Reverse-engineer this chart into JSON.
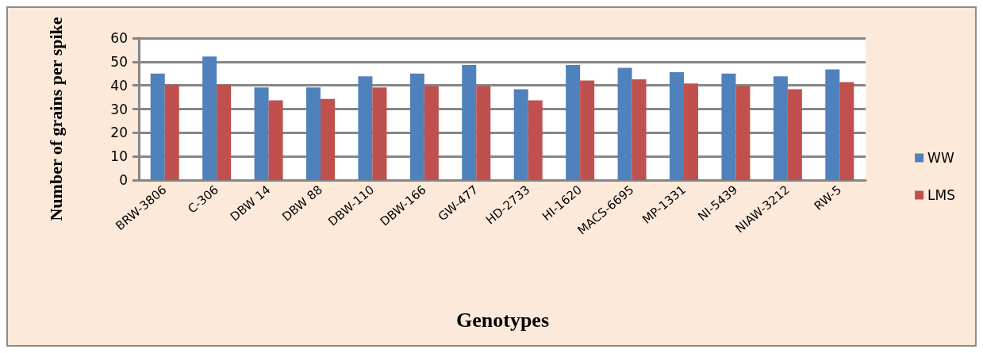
{
  "chart_data": {
    "type": "bar",
    "xlabel": "Genotypes",
    "ylabel": "Number of grains per spike",
    "categories": [
      "BRW-3806",
      "C-306",
      "DBW 14",
      "DBW 88",
      "DBW-110",
      "DBW-166",
      "GW-477",
      "HD-2733",
      "HI-1620",
      "MACS-6695",
      "MP-1331",
      "NI-5439",
      "NIAW-3212",
      "RW-5"
    ],
    "series": [
      {
        "name": "WW",
        "color": "#4f81bd",
        "values": [
          45.0,
          52.2,
          39.1,
          39.1,
          43.8,
          45.0,
          48.6,
          38.4,
          48.6,
          47.4,
          45.6,
          45.0,
          43.8,
          46.8
        ]
      },
      {
        "name": "LMS",
        "color": "#c0504d",
        "values": [
          40.3,
          40.3,
          33.7,
          34.3,
          39.1,
          39.7,
          39.7,
          33.7,
          42.1,
          42.6,
          40.8,
          39.7,
          38.4,
          41.4
        ]
      }
    ],
    "ylim": [
      0,
      60
    ],
    "yticks": [
      0,
      10,
      20,
      30,
      40,
      50,
      60
    ],
    "grid": "y",
    "legend": "right"
  }
}
